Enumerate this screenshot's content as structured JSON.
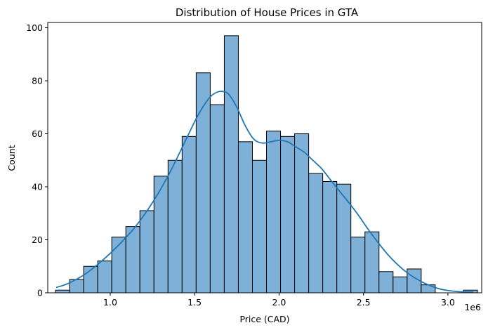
{
  "chart_data": {
    "type": "bar",
    "title": "Distribution of House Prices in GTA",
    "xlabel": "Price (CAD)",
    "ylabel": "Count",
    "x_offset_label": "1e6",
    "xlim": [
      0.63,
      3.2
    ],
    "ylim": [
      0,
      102
    ],
    "xticks": [
      1.0,
      1.5,
      2.0,
      2.5,
      3.0
    ],
    "xtick_labels": [
      "1.0",
      "1.5",
      "2.0",
      "2.5",
      "3.0"
    ],
    "yticks": [
      0,
      20,
      40,
      60,
      80,
      100
    ],
    "ytick_labels": [
      "0",
      "20",
      "40",
      "60",
      "80",
      "100"
    ],
    "bin_start": 0.676,
    "bin_width": 0.0833,
    "values": [
      1,
      5,
      10,
      12,
      21,
      25,
      31,
      44,
      50,
      59,
      83,
      71,
      97,
      57,
      50,
      61,
      59,
      60,
      45,
      42,
      41,
      21,
      23,
      8,
      6,
      9,
      3,
      0,
      0,
      1
    ],
    "kde": {
      "x": [
        0.68,
        0.75,
        0.85,
        0.95,
        1.05,
        1.15,
        1.25,
        1.35,
        1.45,
        1.52,
        1.58,
        1.62,
        1.66,
        1.7,
        1.75,
        1.8,
        1.85,
        1.9,
        1.95,
        2.0,
        2.05,
        2.1,
        2.15,
        2.2,
        2.25,
        2.3,
        2.35,
        2.45,
        2.55,
        2.65,
        2.75,
        2.85,
        2.95,
        3.05,
        3.15
      ],
      "y": [
        2,
        3.5,
        7,
        12,
        18,
        25,
        34,
        45,
        58,
        67,
        73,
        75.3,
        76,
        75,
        70,
        63,
        58,
        56.5,
        57,
        57.5,
        57,
        55,
        53,
        50,
        47,
        43,
        39,
        31,
        22,
        14,
        8,
        4,
        1.5,
        0.5,
        0.3
      ]
    },
    "bar_color": "#7fb0d8",
    "bar_edge_color": "#000000",
    "kde_color": "#1f77b4",
    "grid": false,
    "legend": false
  }
}
